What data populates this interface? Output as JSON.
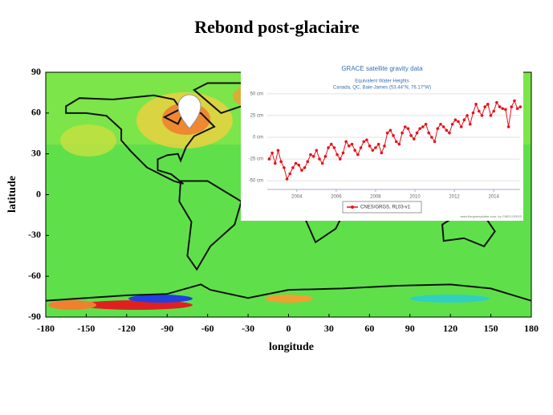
{
  "title": "Rebond post-glaciaire",
  "chart_data": [
    {
      "type": "map",
      "xlabel": "longitude",
      "ylabel": "latitude",
      "xlim": [
        -180,
        180
      ],
      "xticks": [
        -180,
        -150,
        -120,
        -90,
        -60,
        -30,
        0,
        30,
        60,
        90,
        120,
        150,
        180
      ],
      "ylim": [
        -90,
        90
      ],
      "yticks": [
        -90,
        -60,
        -30,
        0,
        30,
        60,
        90
      ]
    },
    {
      "type": "line",
      "title": "GRACE satellite gravity data",
      "subtitle": "Equivalent Water Heights",
      "location": "Canada, QC, Baie-James (53.44°N, 76.17°W)",
      "credit": "www.thegraceplotter.com, by CNES-GRGS",
      "xlim": [
        2002.5,
        2015.5
      ],
      "xticks": [
        2004,
        2006,
        2008,
        2010,
        2012,
        2014
      ],
      "ylim": [
        -60,
        60
      ],
      "yticks": [
        {
          "value": -50,
          "label": "-50 cm"
        },
        {
          "value": -25,
          "label": "-25 cm"
        },
        {
          "value": 0,
          "label": "0 cm"
        },
        {
          "value": 25,
          "label": "25 cm"
        },
        {
          "value": 50,
          "label": "50 cm"
        }
      ],
      "grid": true,
      "x": [
        2002.6,
        2002.75,
        2002.9,
        2003.05,
        2003.2,
        2003.35,
        2003.5,
        2003.65,
        2003.8,
        2003.95,
        2004.1,
        2004.25,
        2004.4,
        2004.55,
        2004.7,
        2004.85,
        2005.0,
        2005.15,
        2005.3,
        2005.45,
        2005.6,
        2005.75,
        2005.9,
        2006.05,
        2006.2,
        2006.35,
        2006.5,
        2006.65,
        2006.8,
        2006.95,
        2007.1,
        2007.25,
        2007.4,
        2007.55,
        2007.7,
        2007.85,
        2008.0,
        2008.15,
        2008.3,
        2008.45,
        2008.6,
        2008.75,
        2008.9,
        2009.05,
        2009.2,
        2009.35,
        2009.5,
        2009.65,
        2009.8,
        2009.95,
        2010.1,
        2010.25,
        2010.4,
        2010.55,
        2010.7,
        2010.85,
        2011.0,
        2011.15,
        2011.3,
        2011.45,
        2011.6,
        2011.75,
        2011.9,
        2012.05,
        2012.2,
        2012.35,
        2012.5,
        2012.65,
        2012.8,
        2012.95,
        2013.1,
        2013.25,
        2013.4,
        2013.55,
        2013.7,
        2013.85,
        2014.0,
        2014.15,
        2014.3,
        2014.45,
        2014.6,
        2014.75,
        2014.9,
        2015.05,
        2015.2,
        2015.35
      ],
      "series": [
        {
          "name": "CNES/GRGS, RL03-v1",
          "color": "#e8111b",
          "values": [
            -25,
            -18,
            -30,
            -15,
            -28,
            -35,
            -48,
            -42,
            -35,
            -30,
            -32,
            -38,
            -35,
            -28,
            -20,
            -22,
            -15,
            -25,
            -30,
            -22,
            -12,
            -8,
            -12,
            -20,
            -25,
            -18,
            -5,
            -10,
            -8,
            -15,
            -20,
            -12,
            -5,
            -3,
            -10,
            -15,
            -12,
            -8,
            -18,
            -10,
            5,
            8,
            2,
            -5,
            -8,
            5,
            12,
            10,
            2,
            -2,
            5,
            10,
            12,
            15,
            5,
            0,
            -5,
            10,
            15,
            12,
            8,
            5,
            15,
            20,
            18,
            12,
            20,
            25,
            15,
            28,
            38,
            30,
            25,
            35,
            38,
            25,
            30,
            40,
            35,
            33,
            32,
            12,
            35,
            42,
            33,
            35
          ]
        }
      ]
    }
  ]
}
